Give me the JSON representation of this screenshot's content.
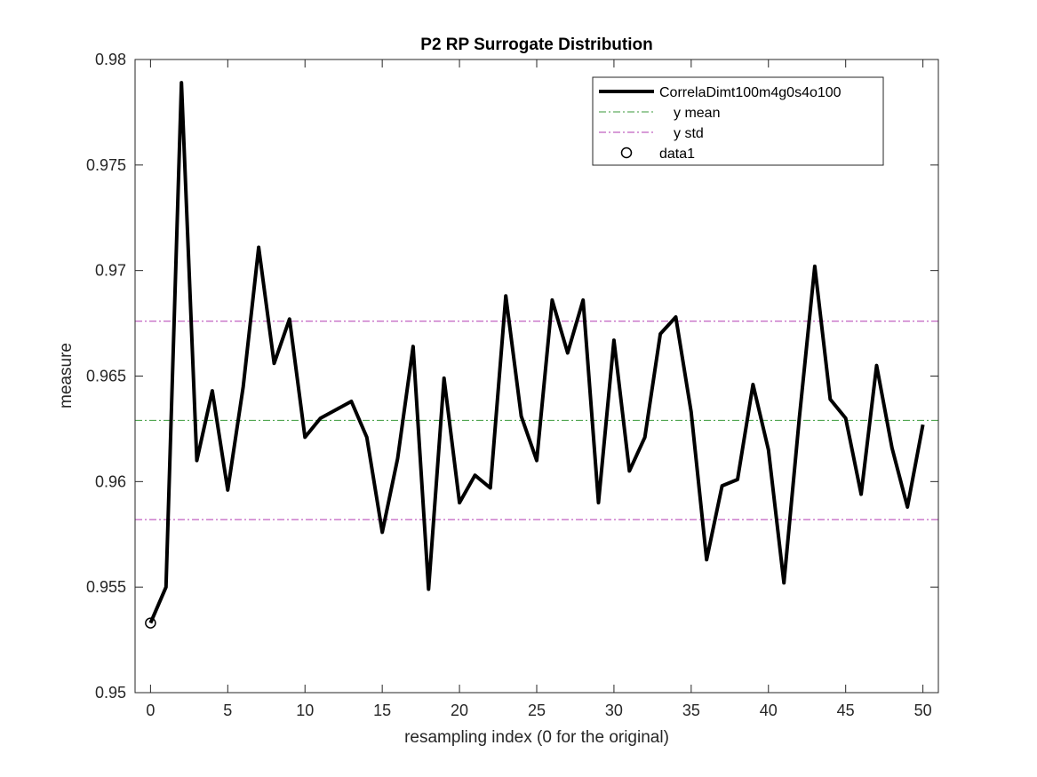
{
  "chart_data": {
    "type": "line",
    "title": "P2 RP Surrogate Distribution",
    "xlabel": "resampling index (0 for the original)",
    "ylabel": "measure",
    "xlim": [
      -1,
      51
    ],
    "ylim": [
      0.95,
      0.98
    ],
    "xticks": [
      0,
      5,
      10,
      15,
      20,
      25,
      30,
      35,
      40,
      45,
      50
    ],
    "yticks": [
      0.95,
      0.955,
      0.96,
      0.965,
      0.97,
      0.975,
      0.98
    ],
    "xtick_labels": [
      "0",
      "5",
      "10",
      "15",
      "20",
      "25",
      "30",
      "35",
      "40",
      "45",
      "50"
    ],
    "ytick_labels": [
      "0.95",
      "0.955",
      "0.96",
      "0.965",
      "0.97",
      "0.975",
      "0.98"
    ],
    "grid": false,
    "legend_position": "top-right",
    "series": [
      {
        "name": "CorrelaDimt100m4g0s4o100",
        "color": "#000000",
        "x": [
          0,
          1,
          2,
          3,
          4,
          5,
          6,
          7,
          8,
          9,
          10,
          11,
          12,
          13,
          14,
          15,
          16,
          17,
          18,
          19,
          20,
          21,
          22,
          23,
          24,
          25,
          26,
          27,
          28,
          29,
          30,
          31,
          32,
          33,
          34,
          35,
          36,
          37,
          38,
          39,
          40,
          41,
          42,
          43,
          44,
          45,
          46,
          47,
          48,
          49,
          50
        ],
        "values": [
          0.9533,
          0.955,
          0.9789,
          0.961,
          0.9643,
          0.9596,
          0.9645,
          0.9711,
          0.9656,
          0.9677,
          0.9621,
          0.963,
          0.9634,
          0.9638,
          0.9621,
          0.9576,
          0.9611,
          0.9664,
          0.9549,
          0.9649,
          0.959,
          0.9603,
          0.9597,
          0.9688,
          0.9631,
          0.961,
          0.9686,
          0.9661,
          0.9686,
          0.959,
          0.9667,
          0.9605,
          0.9621,
          0.967,
          0.9678,
          0.9633,
          0.9563,
          0.9598,
          0.9601,
          0.9646,
          0.9615,
          0.9552,
          0.963,
          0.9702,
          0.9639,
          0.963,
          0.9594,
          0.9655,
          0.9616,
          0.9588,
          0.9627
        ]
      }
    ],
    "reference_lines": [
      {
        "name": "y mean",
        "y": 0.9629,
        "color": "#3a9a3a"
      },
      {
        "name": "y std",
        "y": 0.9676,
        "color": "#b23ab2"
      },
      {
        "name": "y std",
        "y": 0.9582,
        "color": "#b23ab2"
      }
    ],
    "markers": [
      {
        "name": "data1",
        "x": 0,
        "y": 0.9533,
        "color": "#000000"
      }
    ]
  },
  "legend": {
    "items": [
      {
        "label": "CorrelaDimt100m4g0s4o100"
      },
      {
        "label": "y mean"
      },
      {
        "label": "y std"
      },
      {
        "label": "data1"
      }
    ]
  }
}
